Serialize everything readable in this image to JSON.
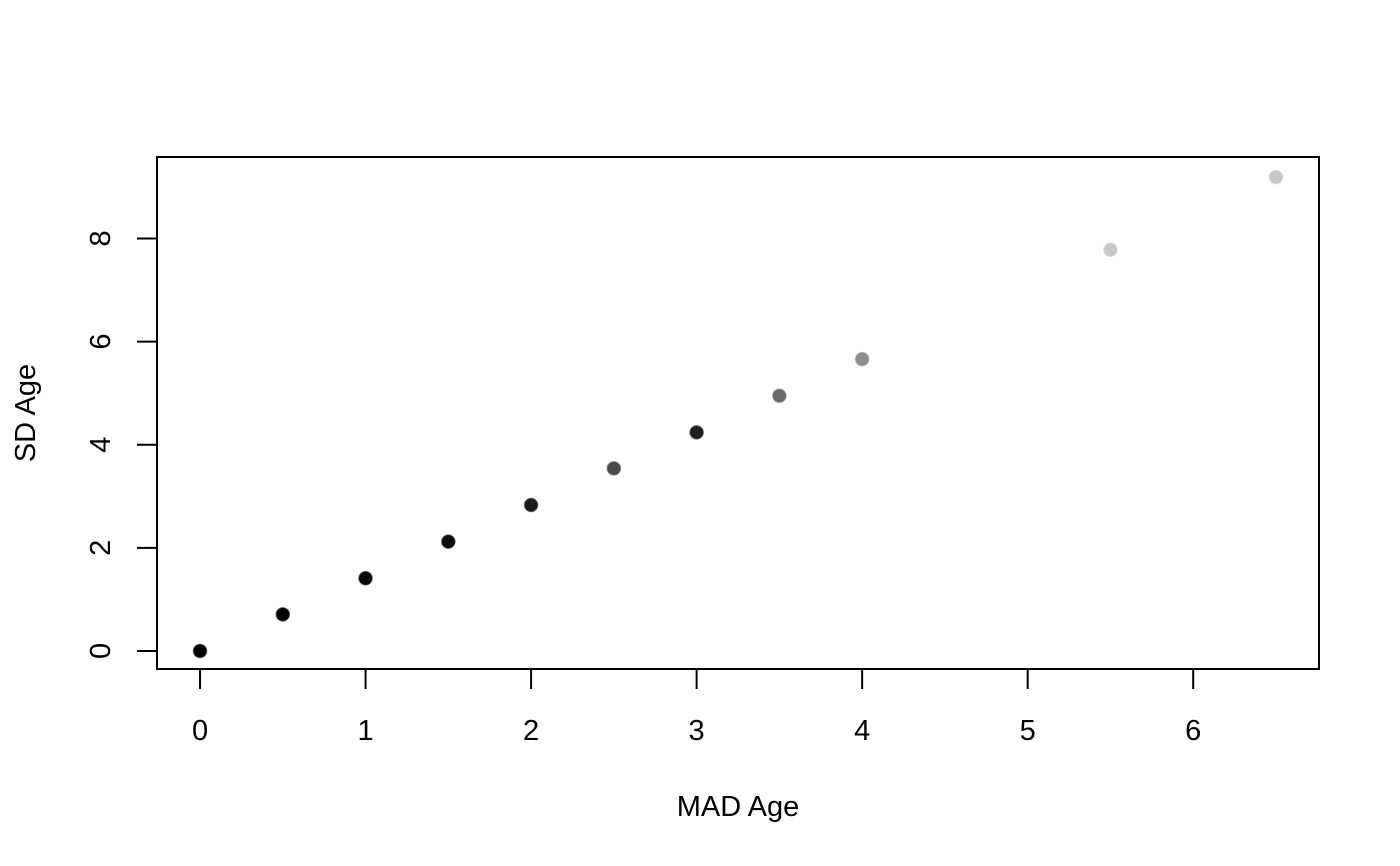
{
  "chart_data": {
    "type": "scatter",
    "title": "",
    "xlabel": "MAD Age",
    "ylabel": "SD Age",
    "xlim": [
      -0.26,
      6.76
    ],
    "ylim": [
      -0.35,
      9.58
    ],
    "x_ticks": [
      0,
      1,
      2,
      3,
      4,
      5,
      6
    ],
    "y_ticks": [
      0,
      2,
      4,
      6,
      8
    ],
    "grid": false,
    "legend": "none",
    "points": [
      {
        "x": 0.0,
        "y": 0.0,
        "color": "#000000"
      },
      {
        "x": 0.5,
        "y": 0.71,
        "color": "#050505"
      },
      {
        "x": 1.0,
        "y": 1.41,
        "color": "#080808"
      },
      {
        "x": 1.5,
        "y": 2.12,
        "color": "#0c0c0c"
      },
      {
        "x": 2.0,
        "y": 2.83,
        "color": "#1c1c1c"
      },
      {
        "x": 2.5,
        "y": 3.54,
        "color": "#4a4a4a"
      },
      {
        "x": 3.0,
        "y": 4.24,
        "color": "#1f1f1f"
      },
      {
        "x": 3.5,
        "y": 4.95,
        "color": "#6a6a6a"
      },
      {
        "x": 4.0,
        "y": 5.66,
        "color": "#8e8e8e"
      },
      {
        "x": 5.5,
        "y": 7.78,
        "color": "#c8c8c8"
      },
      {
        "x": 6.5,
        "y": 9.19,
        "color": "#c8c8c8"
      }
    ]
  }
}
